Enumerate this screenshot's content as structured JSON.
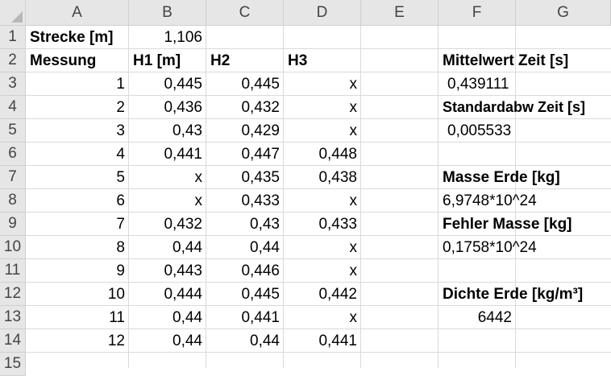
{
  "columns": [
    "A",
    "B",
    "C",
    "D",
    "E",
    "F",
    "G"
  ],
  "rows": [
    "1",
    "2",
    "3",
    "4",
    "5",
    "6",
    "7",
    "8",
    "9",
    "10",
    "11",
    "12",
    "13",
    "14",
    "15"
  ],
  "cells": {
    "A1": "Strecke [m]",
    "B1": "1,106",
    "A2": "Messung",
    "B2": "H1 [m]",
    "C2": "H2",
    "D2": "H3",
    "F2": "Mittelwert Zeit [s]",
    "A3": "1",
    "B3": "0,445",
    "C3": "0,445",
    "D3": "x",
    "F3": "0,439111",
    "A4": "2",
    "B4": "0,436",
    "C4": "0,432",
    "D4": "x",
    "F4": "Standardabw Zeit [s]",
    "A5": "3",
    "B5": "0,43",
    "C5": "0,429",
    "D5": "x",
    "F5": "0,005533",
    "A6": "4",
    "B6": "0,441",
    "C6": "0,447",
    "D6": "0,448",
    "A7": "5",
    "B7": "x",
    "C7": "0,435",
    "D7": "0,438",
    "F7": "Masse Erde [kg]",
    "A8": "6",
    "B8": "x",
    "C8": "0,433",
    "D8": "x",
    "F8": "6,9748*10^24",
    "A9": "7",
    "B9": "0,432",
    "C9": "0,43",
    "D9": "0,433",
    "F9": "Fehler Masse [kg]",
    "A10": "8",
    "B10": "0,44",
    "C10": "0,44",
    "D10": "x",
    "F10": "0,1758*10^24",
    "A11": "9",
    "B11": "0,443",
    "C11": "0,446",
    "D11": "x",
    "A12": "10",
    "B12": "0,444",
    "C12": "0,445",
    "D12": "0,442",
    "F12": "Dichte Erde [kg/m³]",
    "A13": "11",
    "B13": "0,44",
    "C13": "0,441",
    "D13": "x",
    "F13": "6442",
    "A14": "12",
    "B14": "0,44",
    "C14": "0,44",
    "D14": "0,441"
  }
}
